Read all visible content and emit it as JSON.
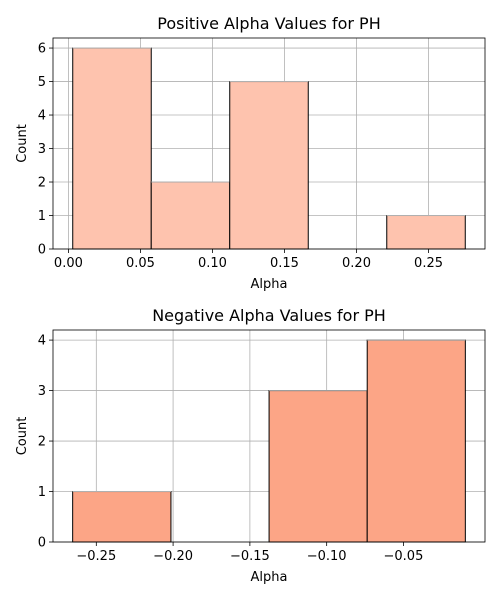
{
  "chart_data": [
    {
      "type": "bar",
      "title": "Positive Alpha Values for PH",
      "xlabel": "Alpha",
      "ylabel": "Count",
      "bins": [
        {
          "x0": 0.003,
          "x1": 0.0575,
          "count": 6
        },
        {
          "x0": 0.0575,
          "x1": 0.112,
          "count": 2
        },
        {
          "x0": 0.112,
          "x1": 0.1665,
          "count": 5
        },
        {
          "x0": 0.1665,
          "x1": 0.221,
          "count": 0
        },
        {
          "x0": 0.221,
          "x1": 0.2755,
          "count": 1
        }
      ],
      "xlim": [
        -0.0107,
        0.2892
      ],
      "ylim": [
        0,
        6.3
      ],
      "xticks": [
        0.0,
        0.05,
        0.1,
        0.15,
        0.2,
        0.25
      ],
      "xtick_labels": [
        "0.00",
        "0.05",
        "0.10",
        "0.15",
        "0.20",
        "0.25"
      ],
      "yticks": [
        0,
        1,
        2,
        3,
        4,
        5,
        6
      ],
      "ytick_labels": [
        "0",
        "1",
        "2",
        "3",
        "4",
        "5",
        "6"
      ],
      "grid": true,
      "bar_color": "#fec3ae",
      "edge_color": "#000000"
    },
    {
      "type": "bar",
      "title": "Negative Alpha Values for PH",
      "xlabel": "Alpha",
      "ylabel": "Count",
      "bins": [
        {
          "x0": -0.2654,
          "x1": -0.2014,
          "count": 1
        },
        {
          "x0": -0.2014,
          "x1": -0.1375,
          "count": 0
        },
        {
          "x0": -0.1375,
          "x1": -0.0736,
          "count": 3
        },
        {
          "x0": -0.0736,
          "x1": -0.0097,
          "count": 4
        }
      ],
      "xlim": [
        -0.2782,
        0.0031
      ],
      "ylim": [
        0,
        4.2
      ],
      "xticks": [
        -0.25,
        -0.2,
        -0.15,
        -0.1,
        -0.05
      ],
      "xtick_labels": [
        "−0.25",
        "−0.20",
        "−0.15",
        "−0.10",
        "−0.05"
      ],
      "yticks": [
        0,
        1,
        2,
        3,
        4
      ],
      "ytick_labels": [
        "0",
        "1",
        "2",
        "3",
        "4"
      ],
      "grid": true,
      "bar_color": "#fca586",
      "edge_color": "#000000"
    }
  ]
}
